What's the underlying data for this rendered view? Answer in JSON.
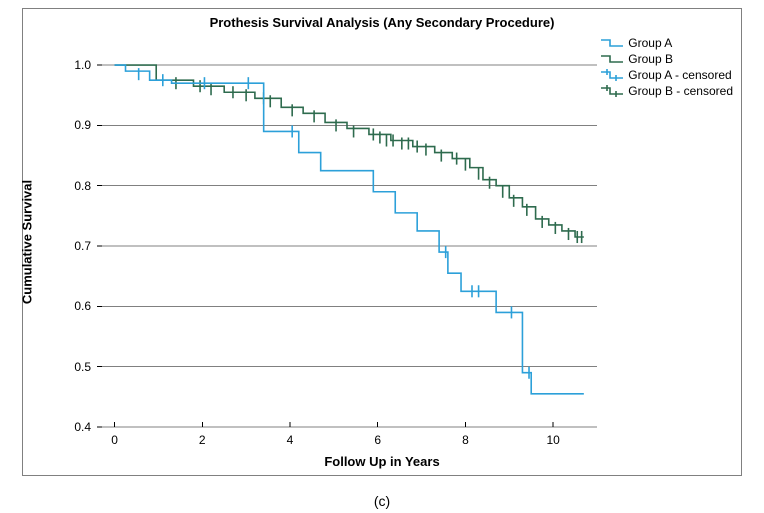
{
  "chart": {
    "type": "survival_step",
    "title": "Prothesis Survival Analysis (Any Secondary Procedure)",
    "xlabel": "Follow Up in Years",
    "ylabel": "Cumulative Survival",
    "title_fontsize": 13,
    "label_fontsize": 13,
    "tick_fontsize": 12,
    "background_color": "#ffffff",
    "border_color": "#808080",
    "grid_color": "#808080",
    "grid_line_width": 1,
    "xlim": [
      -0.4,
      11.0
    ],
    "ylim": [
      0.4,
      1.03
    ],
    "xticks": [
      0,
      2,
      4,
      6,
      8,
      10
    ],
    "yticks": [
      0.4,
      0.5,
      0.6,
      0.7,
      0.8,
      0.9,
      1.0
    ],
    "line_width": 1.6,
    "censor_tick_halfheight": 0.01,
    "series": {
      "A": {
        "label": "Group A",
        "censored_label": "Group A - censored",
        "color": "#2ca0d9",
        "steps": [
          [
            0.0,
            1.0
          ],
          [
            0.25,
            0.99
          ],
          [
            0.8,
            0.975
          ],
          [
            1.3,
            0.97
          ],
          [
            3.4,
            0.97
          ],
          [
            3.4,
            0.89
          ],
          [
            4.2,
            0.89
          ],
          [
            4.2,
            0.855
          ],
          [
            4.7,
            0.855
          ],
          [
            4.7,
            0.825
          ],
          [
            5.9,
            0.825
          ],
          [
            5.9,
            0.79
          ],
          [
            6.4,
            0.79
          ],
          [
            6.4,
            0.755
          ],
          [
            6.9,
            0.755
          ],
          [
            6.9,
            0.725
          ],
          [
            7.4,
            0.725
          ],
          [
            7.4,
            0.69
          ],
          [
            7.6,
            0.69
          ],
          [
            7.6,
            0.655
          ],
          [
            7.9,
            0.655
          ],
          [
            7.9,
            0.625
          ],
          [
            8.7,
            0.625
          ],
          [
            8.7,
            0.59
          ],
          [
            9.3,
            0.59
          ],
          [
            9.3,
            0.49
          ],
          [
            9.5,
            0.49
          ],
          [
            9.5,
            0.455
          ],
          [
            10.7,
            0.455
          ]
        ],
        "censored": [
          [
            0.55,
            0.985
          ],
          [
            1.1,
            0.975
          ],
          [
            2.05,
            0.97
          ],
          [
            3.05,
            0.97
          ],
          [
            4.05,
            0.89
          ],
          [
            7.55,
            0.69
          ],
          [
            8.15,
            0.625
          ],
          [
            8.3,
            0.625
          ],
          [
            9.05,
            0.59
          ],
          [
            9.45,
            0.49
          ]
        ]
      },
      "B": {
        "label": "Group B",
        "censored_label": "Group B - censored",
        "color": "#2e6b4e",
        "steps": [
          [
            0.0,
            1.0
          ],
          [
            0.95,
            0.975
          ],
          [
            1.8,
            0.965
          ],
          [
            2.5,
            0.955
          ],
          [
            3.2,
            0.945
          ],
          [
            3.8,
            0.93
          ],
          [
            4.3,
            0.92
          ],
          [
            4.8,
            0.905
          ],
          [
            5.3,
            0.895
          ],
          [
            5.8,
            0.885
          ],
          [
            6.3,
            0.875
          ],
          [
            6.8,
            0.865
          ],
          [
            7.3,
            0.855
          ],
          [
            7.7,
            0.845
          ],
          [
            8.1,
            0.83
          ],
          [
            8.4,
            0.81
          ],
          [
            8.7,
            0.8
          ],
          [
            9.0,
            0.78
          ],
          [
            9.3,
            0.765
          ],
          [
            9.6,
            0.745
          ],
          [
            9.9,
            0.735
          ],
          [
            10.2,
            0.725
          ],
          [
            10.5,
            0.715
          ],
          [
            10.7,
            0.715
          ]
        ],
        "censored": [
          [
            1.4,
            0.97
          ],
          [
            1.95,
            0.965
          ],
          [
            2.2,
            0.96
          ],
          [
            2.7,
            0.955
          ],
          [
            3.0,
            0.95
          ],
          [
            3.4,
            0.945
          ],
          [
            3.55,
            0.94
          ],
          [
            4.05,
            0.925
          ],
          [
            4.55,
            0.915
          ],
          [
            5.05,
            0.9
          ],
          [
            5.45,
            0.89
          ],
          [
            5.9,
            0.885
          ],
          [
            6.05,
            0.88
          ],
          [
            6.2,
            0.875
          ],
          [
            6.35,
            0.875
          ],
          [
            6.55,
            0.87
          ],
          [
            6.7,
            0.87
          ],
          [
            6.9,
            0.865
          ],
          [
            7.1,
            0.86
          ],
          [
            7.45,
            0.85
          ],
          [
            7.8,
            0.845
          ],
          [
            8.0,
            0.835
          ],
          [
            8.3,
            0.82
          ],
          [
            8.55,
            0.805
          ],
          [
            8.85,
            0.79
          ],
          [
            9.1,
            0.775
          ],
          [
            9.4,
            0.76
          ],
          [
            9.75,
            0.74
          ],
          [
            10.05,
            0.73
          ],
          [
            10.35,
            0.72
          ],
          [
            10.55,
            0.715
          ],
          [
            10.65,
            0.715
          ]
        ]
      }
    },
    "legend_position": "top-right",
    "caption": "(c)"
  }
}
